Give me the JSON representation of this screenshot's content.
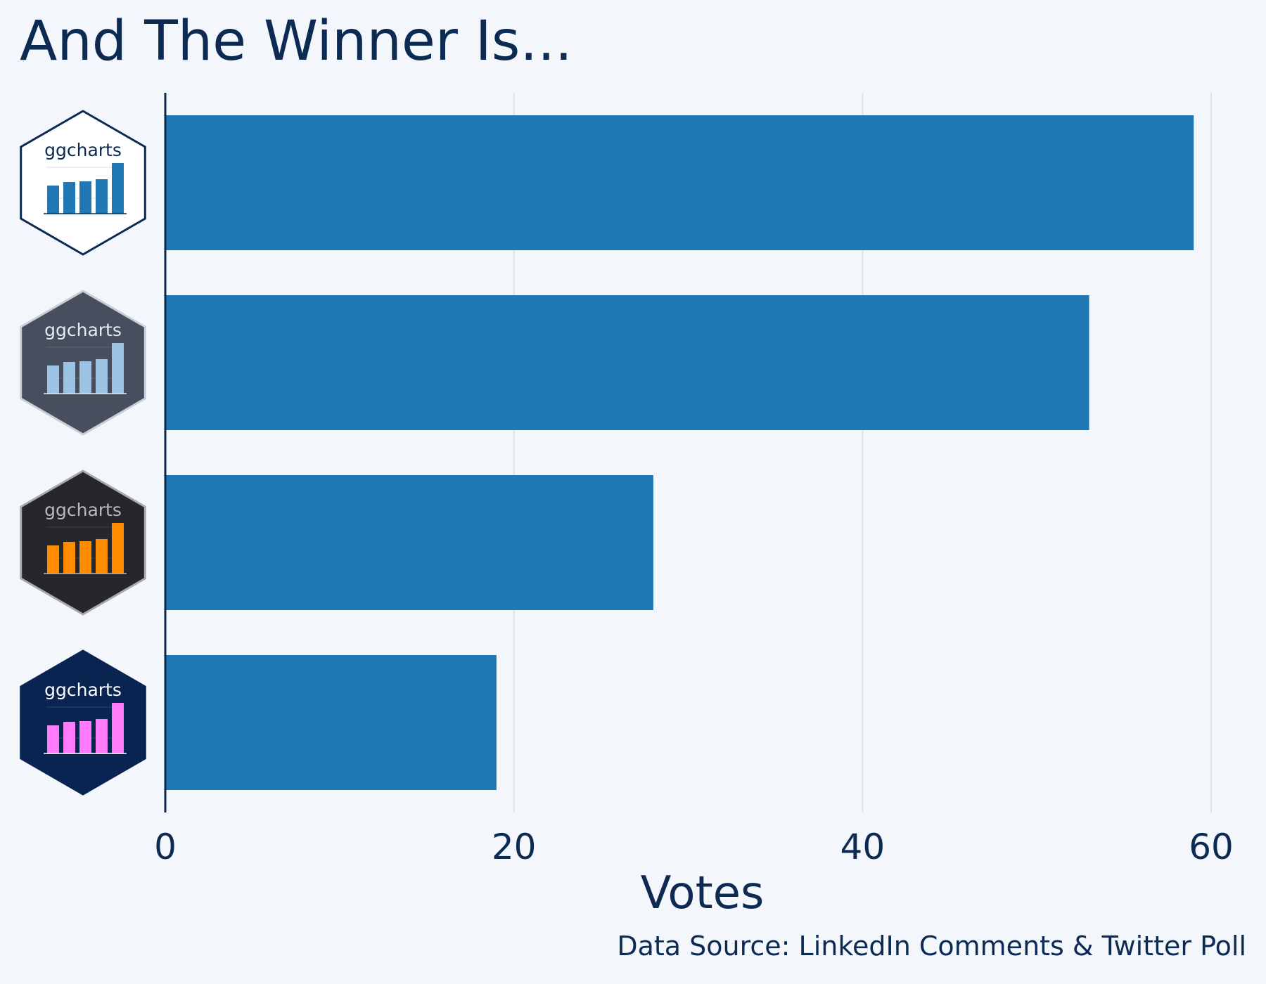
{
  "title": "And The Winner Is...",
  "caption": "Data Source: LinkedIn Comments & Twitter Poll",
  "chart_data": {
    "type": "bar",
    "orientation": "horizontal",
    "categories": [
      {
        "label": "ggcharts",
        "theme": "theme_ggcharts",
        "logo_colors": {
          "bg": "#ffffff",
          "border": "#0c2a52",
          "bars": "#1f77b4",
          "text": "#0c2a52"
        }
      },
      {
        "label": "ggcharts",
        "theme": "theme_nightblue-like grey",
        "logo_colors": {
          "bg": "#474e5d",
          "border": "#c9ced6",
          "bars": "#9cc3e2",
          "text": "#e6e9ee"
        }
      },
      {
        "label": "ggcharts",
        "theme": "dark",
        "logo_colors": {
          "bg": "#26272b",
          "border": "#a9a9ab",
          "bars": "#ff8c00",
          "text": "#b8b8bb"
        }
      },
      {
        "label": "ggcharts",
        "theme": "navy",
        "logo_colors": {
          "bg": "#0a2452",
          "border": "#0a2452",
          "bars": "#ff7bf9",
          "text": "#ffffff"
        }
      }
    ],
    "values": [
      59,
      53,
      28,
      19
    ],
    "xlabel": "Votes",
    "ylabel": "",
    "xlim": [
      0,
      60
    ],
    "xticks": [
      0,
      20,
      40,
      60
    ],
    "grid": "vertical major",
    "bar_color": "#1f77b4"
  }
}
